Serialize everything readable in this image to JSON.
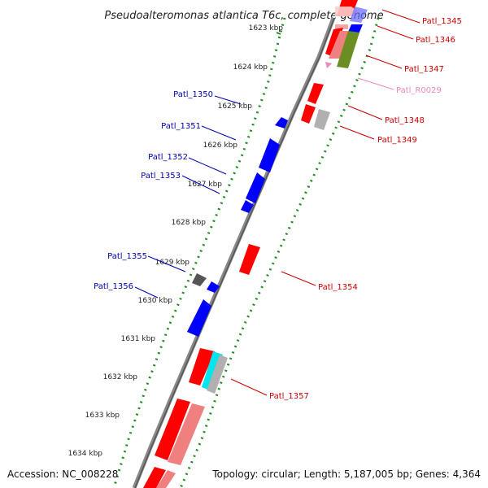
{
  "title": "Pseudoalteromonas atlantica T6c, complete genome",
  "accession": "Accession: NC_008228",
  "topology": "Topology: circular; Length: 5,187,005 bp; Genes: 4,364",
  "colors": {
    "forward": "#ff0000",
    "forward_light": "#f08080",
    "reverse": "#0000ff",
    "gray": "#aaaaaa",
    "dark_gray": "#555555",
    "olive": "#6b8e23",
    "cyan": "#00e5ee",
    "rna": "#ee88bb",
    "tick_green": "#228b22"
  },
  "ticks": [
    "1623 kbp",
    "1624 kbp",
    "1625 kbp",
    "1626 kbp",
    "1627 kbp",
    "1628 kbp",
    "1629 kbp",
    "1630 kbp",
    "1631 kbp",
    "1632 kbp",
    "1633 kbp",
    "1634 kbp"
  ],
  "labels": {
    "patl_1345": "Patl_1345",
    "patl_1346": "Patl_1346",
    "patl_1347": "Patl_1347",
    "patl_r0029": "Patl_R0029",
    "patl_1348": "Patl_1348",
    "patl_1349": "Patl_1349",
    "patl_1350": "Patl_1350",
    "patl_1351": "Patl_1351",
    "patl_1352": "Patl_1352",
    "patl_1353": "Patl_1353",
    "patl_1354": "Patl_1354",
    "patl_1355": "Patl_1355",
    "patl_1356": "Patl_1356",
    "patl_1357": "Patl_1357"
  }
}
